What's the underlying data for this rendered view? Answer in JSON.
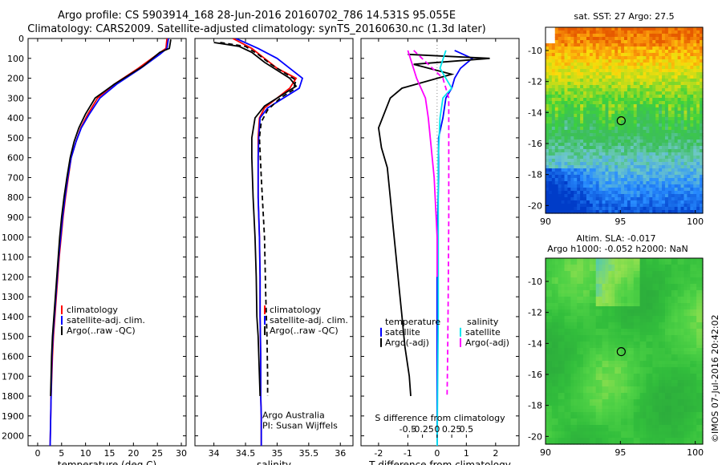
{
  "title_line1": "Argo profile: CS 5903914_168 28-Jun-2016 20160702_786 14.531S 95.055E",
  "title_line2": "Climatology: CARS2009. Satellite-adjusted climatology: synTS_20160630.nc (1.3d later)",
  "credit": "©IMOS 07-Jul-2016 20:42:02",
  "colors": {
    "climatology": "#ff0000",
    "satellite": "#0000ff",
    "argo": "#000000",
    "sal_satellite": "#00e5ee",
    "sal_argo": "#ff00ff"
  },
  "chart_data": [
    {
      "type": "line",
      "name": "temperature-panel",
      "xlabel": "temperature (deg C)",
      "ylabel": "",
      "xlim": [
        -2,
        31
      ],
      "ylim": [
        2050,
        0
      ],
      "xticks": [
        0,
        5,
        10,
        15,
        20,
        25,
        30
      ],
      "yticks": [
        0,
        100,
        200,
        300,
        400,
        500,
        600,
        700,
        800,
        900,
        1000,
        1100,
        1200,
        1300,
        1400,
        1500,
        1600,
        1700,
        1800,
        1900,
        2000
      ],
      "legend": [
        "climatology",
        "satellite-adj. clim.",
        "Argo(..raw -QC)"
      ],
      "legend_position": "lower-right",
      "series": [
        {
          "name": "climatology",
          "color": "#ff0000",
          "dash": "",
          "x": [
            27.0,
            26.8,
            25.0,
            21.0,
            16.0,
            12.5,
            10.5,
            9.0,
            8.0,
            7.0,
            6.4,
            5.8,
            5.3,
            4.9,
            4.5,
            4.2,
            3.9,
            3.6,
            3.3,
            3.1,
            2.8,
            2.6
          ],
          "y": [
            0,
            50,
            80,
            150,
            230,
            300,
            380,
            450,
            520,
            600,
            700,
            800,
            900,
            1000,
            1100,
            1200,
            1300,
            1400,
            1500,
            1600,
            1800,
            2050
          ]
        },
        {
          "name": "satellite",
          "color": "#0000ff",
          "dash": "",
          "x": [
            27.3,
            27.0,
            25.5,
            21.5,
            16.5,
            13.0,
            10.8,
            9.1,
            8.0,
            7.0,
            6.3,
            5.7,
            5.2,
            4.8,
            4.4,
            4.1,
            3.8,
            3.5,
            3.2,
            3.0,
            2.8,
            2.6
          ],
          "y": [
            0,
            50,
            80,
            150,
            230,
            300,
            380,
            450,
            520,
            600,
            700,
            800,
            900,
            1000,
            1100,
            1200,
            1300,
            1400,
            1500,
            1600,
            1800,
            2050
          ]
        },
        {
          "name": "argo",
          "color": "#000000",
          "dash": "",
          "x": [
            27.8,
            27.5,
            25.5,
            22.0,
            16.0,
            12.0,
            10.0,
            8.6,
            7.6,
            6.8,
            6.1,
            5.5,
            5.0,
            4.6,
            4.3,
            4.0,
            3.7,
            3.4,
            3.1,
            2.9,
            2.7
          ],
          "y": [
            5,
            50,
            70,
            140,
            230,
            300,
            380,
            450,
            520,
            600,
            700,
            800,
            900,
            1000,
            1100,
            1200,
            1300,
            1400,
            1500,
            1600,
            1800
          ]
        }
      ]
    },
    {
      "type": "line",
      "name": "salinity-panel",
      "xlabel": "salinity",
      "xlim": [
        33.7,
        36.2
      ],
      "ylim": [
        2050,
        0
      ],
      "xticks": [
        34,
        34.5,
        35,
        35.5,
        36
      ],
      "legend": [
        "climatology",
        "satellite-adj. clim.",
        "Argo(..raw -QC)"
      ],
      "legend_position": "lower-right",
      "annotation": [
        "Argo Australia",
        "PI: Susan Wijffels"
      ],
      "series": [
        {
          "name": "climatology",
          "color": "#ff0000",
          "dash": "",
          "x": [
            34.3,
            34.6,
            34.8,
            35.0,
            35.3,
            35.2,
            35.0,
            34.8,
            34.72,
            34.7,
            34.7,
            34.7,
            34.72,
            34.73,
            34.73,
            34.74,
            34.74,
            34.74,
            34.75,
            34.75
          ],
          "y": [
            0,
            50,
            100,
            150,
            200,
            250,
            300,
            350,
            400,
            500,
            600,
            800,
            1000,
            1200,
            1400,
            1600,
            1700,
            1800,
            1900,
            2050
          ]
        },
        {
          "name": "satellite",
          "color": "#0000ff",
          "dash": "",
          "x": [
            34.35,
            34.7,
            35.0,
            35.2,
            35.4,
            35.35,
            35.1,
            34.85,
            34.73,
            34.71,
            34.7,
            34.7,
            34.72,
            34.73,
            34.73,
            34.74,
            34.74,
            34.74,
            34.75,
            34.75
          ],
          "y": [
            0,
            50,
            100,
            150,
            200,
            250,
            300,
            350,
            400,
            500,
            600,
            800,
            1000,
            1200,
            1400,
            1600,
            1700,
            1800,
            1900,
            2050
          ]
        },
        {
          "name": "argo",
          "color": "#000000",
          "dash": "",
          "x": [
            34.0,
            34.4,
            34.6,
            34.8,
            35.2,
            35.3,
            35.1,
            34.8,
            34.65,
            34.6,
            34.6,
            34.62,
            34.65,
            34.67,
            34.68,
            34.7,
            34.71,
            34.72,
            34.73
          ],
          "y": [
            20,
            40,
            70,
            120,
            200,
            240,
            280,
            340,
            400,
            500,
            600,
            800,
            1000,
            1200,
            1400,
            1500,
            1600,
            1700,
            1800
          ]
        },
        {
          "name": "argo-adj-diff-sal",
          "color": "#000000",
          "dash": "6,4",
          "x": [
            34.1,
            34.5,
            34.7,
            34.9,
            35.3,
            35.25,
            35.05,
            34.85,
            34.75,
            34.72,
            34.75,
            34.8,
            34.82,
            34.84,
            34.85,
            34.85
          ],
          "y": [
            20,
            40,
            80,
            130,
            210,
            260,
            300,
            360,
            420,
            500,
            700,
            1000,
            1300,
            1500,
            1700,
            1800
          ]
        }
      ]
    },
    {
      "type": "line",
      "name": "difference-panel",
      "xlabel": "T difference from climatology",
      "xlabel_top": "S difference from climatology",
      "xlim": [
        -2.6,
        2.8
      ],
      "ylim": [
        2050,
        0
      ],
      "xticks": [
        -2,
        -1,
        0,
        1,
        2
      ],
      "xticks_top_values": [
        -0.5,
        -0.25,
        0,
        0.25,
        0.5
      ],
      "xticks_top_labels": [
        "-0.5",
        "-0.25",
        "0",
        "0.25",
        "0.5"
      ],
      "legend_temperature": [
        "temperature",
        "satellite",
        "Argo(-adj)"
      ],
      "legend_salinity": [
        "salinity",
        "satellite",
        "Argo(-adj)"
      ],
      "series": [
        {
          "name": "temp-satellite",
          "color": "#0000ff",
          "dash": "",
          "x": [
            0.6,
            1.2,
            0.8,
            0.6,
            0.5,
            0.3,
            0.2,
            0.05,
            0.05,
            0.02,
            0.0,
            0.0,
            0.0,
            0.0,
            0.0,
            0.0
          ],
          "y": [
            60,
            100,
            150,
            200,
            250,
            300,
            400,
            500,
            700,
            900,
            1100,
            1300,
            1500,
            1700,
            1900,
            2050
          ]
        },
        {
          "name": "temp-argo",
          "color": "#000000",
          "dash": "",
          "x": [
            -1.0,
            1.8,
            -0.8,
            0.5,
            -1.2,
            -1.6,
            -2.0,
            -1.9,
            -1.7,
            -1.6,
            -1.5,
            -1.4,
            -1.3,
            -1.2,
            -1.1,
            -0.95,
            -0.9
          ],
          "y": [
            80,
            100,
            130,
            180,
            250,
            300,
            450,
            550,
            650,
            800,
            950,
            1100,
            1250,
            1400,
            1550,
            1700,
            1800
          ]
        },
        {
          "name": "sal-satellite",
          "color": "#00e5ee",
          "dash": "",
          "x": [
            0.15,
            0.05,
            0.25,
            0.1,
            0.05,
            0.02,
            0.02,
            0.02,
            0.0
          ],
          "y": [
            60,
            150,
            250,
            300,
            400,
            600,
            900,
            1400,
            2050
          ]
        },
        {
          "name": "sal-argo",
          "color": "#ff00ff",
          "dash": "",
          "x": [
            -0.5,
            -0.35,
            -0.2,
            -0.15,
            -0.05,
            0.0,
            0.0
          ],
          "y": [
            60,
            200,
            300,
            400,
            700,
            1000,
            1200
          ]
        },
        {
          "name": "sal-argo-adj",
          "color": "#ff00ff",
          "dash": "6,4",
          "x": [
            -0.4,
            0.1,
            0.2,
            0.2,
            0.2,
            0.19,
            0.18,
            0.17
          ],
          "y": [
            60,
            200,
            300,
            500,
            900,
            1300,
            1600,
            1800
          ]
        }
      ]
    },
    {
      "type": "heatmap",
      "name": "sst-map",
      "title": "sat. SST: 27 Argo: 27.5",
      "xlim": [
        90,
        100.5
      ],
      "ylim": [
        -20.5,
        -8.5
      ],
      "xticks": [
        90,
        95,
        100
      ],
      "yticks": [
        -10,
        -12,
        -14,
        -16,
        -18,
        -20
      ],
      "marker": {
        "lon": 95.055,
        "lat": -14.531
      }
    },
    {
      "type": "heatmap",
      "name": "sla-map",
      "title_line1": "Altim. SLA: -0.017",
      "title_line2": "Argo h1000: -0.052 h2000: NaN",
      "xlim": [
        90,
        100.5
      ],
      "ylim": [
        -20.5,
        -8.5
      ],
      "xticks": [
        90,
        95,
        100
      ],
      "yticks": [
        -10,
        -12,
        -14,
        -16,
        -18,
        -20
      ],
      "marker": {
        "lon": 95.055,
        "lat": -14.531
      }
    }
  ]
}
